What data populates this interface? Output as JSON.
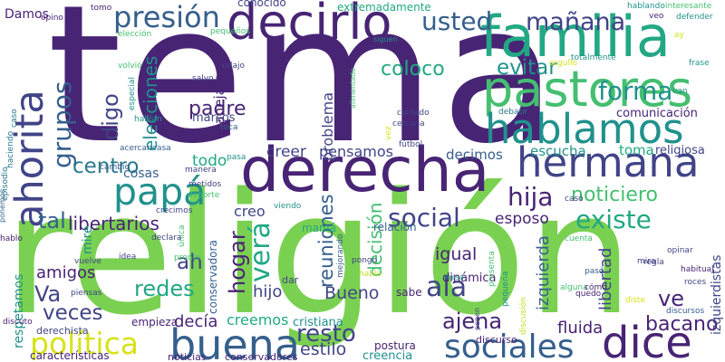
{
  "palette": {
    "purple": "#482475",
    "violet": "#414487",
    "blue": "#355f8d",
    "steel": "#2a788e",
    "teal": "#21918c",
    "sea": "#22a884",
    "green": "#44bf70",
    "lime": "#7ad151",
    "yellow": "#bddf26",
    "gold": "#d8e219"
  },
  "words": [
    {
      "text": "tema",
      "color": "purple"
    },
    {
      "text": "religión",
      "color": "lime"
    },
    {
      "text": "derecha",
      "color": "purple"
    },
    {
      "text": "familia",
      "color": "sea"
    },
    {
      "text": "pastores",
      "color": "green"
    },
    {
      "text": "decirlo",
      "color": "purple"
    },
    {
      "text": "hermana",
      "color": "violet"
    },
    {
      "text": "hablamos",
      "color": "teal"
    },
    {
      "text": "ahorita",
      "color": "violet"
    },
    {
      "text": "buena",
      "color": "blue"
    },
    {
      "text": "dice",
      "color": "purple"
    },
    {
      "text": "papá",
      "color": "teal"
    },
    {
      "text": "sociales",
      "color": "blue"
    },
    {
      "text": "política",
      "color": "gold"
    },
    {
      "text": "presión",
      "color": "blue"
    },
    {
      "text": "usted",
      "color": "blue"
    },
    {
      "text": "mañana",
      "color": "violet"
    },
    {
      "text": "forma",
      "color": "teal"
    },
    {
      "text": "social",
      "color": "violet"
    },
    {
      "text": "existe",
      "color": "sea"
    },
    {
      "text": "hija",
      "color": "purple"
    },
    {
      "text": "noticiero",
      "color": "green"
    },
    {
      "text": "verá",
      "color": "sea"
    },
    {
      "text": "tal",
      "color": "blue"
    },
    {
      "text": "grupos",
      "color": "blue"
    },
    {
      "text": "ala",
      "color": "violet"
    },
    {
      "text": "centro",
      "color": "steel"
    },
    {
      "text": "libertarios",
      "color": "purple"
    },
    {
      "text": "evitar",
      "color": "teal"
    },
    {
      "text": "coloco",
      "color": "sea"
    },
    {
      "text": "digo",
      "color": "violet"
    },
    {
      "text": "elecciones",
      "color": "teal"
    },
    {
      "text": "padre",
      "color": "purple"
    },
    {
      "text": "hogar",
      "color": "purple"
    },
    {
      "text": "reuniones",
      "color": "blue"
    },
    {
      "text": "resto",
      "color": "violet"
    },
    {
      "text": "ajena",
      "color": "purple"
    },
    {
      "text": "veces",
      "color": "violet"
    },
    {
      "text": "redes",
      "color": "sea"
    },
    {
      "text": "ah",
      "color": "violet"
    },
    {
      "text": "Va",
      "color": "violet"
    },
    {
      "text": "amigos",
      "color": "purple"
    },
    {
      "text": "bacano",
      "color": "purple"
    },
    {
      "text": "ve",
      "color": "purple"
    },
    {
      "text": "esposo",
      "color": "purple"
    },
    {
      "text": "igual",
      "color": "purple"
    },
    {
      "text": "hijo",
      "color": "violet"
    },
    {
      "text": "Bueno",
      "color": "violet"
    },
    {
      "text": "decía",
      "color": "purple"
    },
    {
      "text": "creemos",
      "color": "sea"
    },
    {
      "text": "estilo",
      "color": "violet"
    },
    {
      "text": "fluida",
      "color": "purple"
    },
    {
      "text": "libertad",
      "color": "violet"
    },
    {
      "text": "izquierda",
      "color": "blue"
    },
    {
      "text": "decisión",
      "color": "green"
    },
    {
      "text": "manejamos",
      "color": "purple"
    },
    {
      "text": "problema",
      "color": "violet"
    },
    {
      "text": "creer",
      "color": "violet"
    },
    {
      "text": "pensamos",
      "color": "violet"
    },
    {
      "text": "decimos",
      "color": "blue"
    },
    {
      "text": "escucha",
      "color": "teal"
    },
    {
      "text": "toma",
      "color": "sea"
    },
    {
      "text": "todo",
      "color": "sea"
    },
    {
      "text": "creo",
      "color": "violet"
    },
    {
      "text": "mire",
      "color": "teal"
    },
    {
      "text": "cosas",
      "color": "blue"
    },
    {
      "text": "Damos",
      "color": "purple"
    },
    {
      "text": "respetamos",
      "color": "teal"
    },
    {
      "text": "izquierdistas",
      "color": "violet"
    },
    {
      "text": "comunicación",
      "color": "purple"
    },
    {
      "text": "religiosa",
      "color": "violet"
    },
    {
      "text": "marcos",
      "color": "violet"
    },
    {
      "text": "conocido",
      "color": "violet"
    },
    {
      "text": "extremadamente",
      "color": "sea"
    },
    {
      "text": "cristiana",
      "color": "teal"
    },
    {
      "text": "creencia",
      "color": "teal"
    },
    {
      "text": "empieza",
      "color": "purple"
    },
    {
      "text": "conservadora",
      "color": "blue"
    },
    {
      "text": "dinámica",
      "color": "purple"
    },
    {
      "text": "relación",
      "color": "blue"
    },
    {
      "text": "mamá",
      "color": "sea"
    },
    {
      "text": "dar",
      "color": "violet"
    },
    {
      "text": "sabe",
      "color": "purple"
    },
    {
      "text": "postura",
      "color": "purple"
    },
    {
      "text": "características",
      "color": "purple"
    },
    {
      "text": "derechista",
      "color": "violet"
    },
    {
      "text": "noticias",
      "color": "purple"
    },
    {
      "text": "conservadores",
      "color": "purple"
    },
    {
      "text": "discurso",
      "color": "purple"
    },
    {
      "text": "opino",
      "color": "purple"
    },
    {
      "text": "tomo",
      "color": "purple"
    },
    {
      "text": "elección",
      "color": "green"
    },
    {
      "text": "pequeños",
      "color": "green"
    },
    {
      "text": "hablando",
      "color": "teal"
    },
    {
      "text": "interesante",
      "color": "green"
    },
    {
      "text": "defender",
      "color": "teal"
    },
    {
      "text": "veo",
      "color": "purple"
    },
    {
      "text": "siguen",
      "color": "teal"
    },
    {
      "text": "totalmente",
      "color": "teal"
    },
    {
      "text": "ay",
      "color": "gold"
    },
    {
      "text": "frase",
      "color": "teal"
    },
    {
      "text": "van",
      "color": "teal"
    },
    {
      "text": "volvió",
      "color": "green"
    },
    {
      "text": "relajo",
      "color": "violet"
    },
    {
      "text": "salvo",
      "color": "violet"
    },
    {
      "text": "alimentado",
      "color": "green"
    },
    {
      "text": "cuidado",
      "color": "violet"
    },
    {
      "text": "cercana",
      "color": "violet"
    },
    {
      "text": "vez",
      "color": "gold"
    },
    {
      "text": "debatir",
      "color": "steel"
    },
    {
      "text": "fútbol",
      "color": "violet"
    },
    {
      "text": "toca",
      "color": "blue"
    },
    {
      "text": "casa",
      "color": "blue"
    },
    {
      "text": "acercan",
      "color": "blue"
    },
    {
      "text": "cambio",
      "color": "blue"
    },
    {
      "text": "especial",
      "color": "teal"
    },
    {
      "text": "hablan",
      "color": "teal"
    },
    {
      "text": "crecimos",
      "color": "violet"
    },
    {
      "text": "caso",
      "color": "steel"
    },
    {
      "text": "haciendo",
      "color": "steel"
    },
    {
      "text": "pasa",
      "color": "teal"
    },
    {
      "text": "manera",
      "color": "violet"
    },
    {
      "text": "metidos",
      "color": "violet"
    },
    {
      "text": "deporte",
      "color": "green"
    },
    {
      "text": "viendo",
      "color": "teal"
    },
    {
      "text": "ponemos",
      "color": "blue"
    },
    {
      "text": "hablo",
      "color": "purple"
    },
    {
      "text": "casó",
      "color": "violet"
    },
    {
      "text": "cuenta",
      "color": "green"
    },
    {
      "text": "única",
      "color": "green"
    },
    {
      "text": "declara",
      "color": "violet"
    },
    {
      "text": "pronto",
      "color": "green"
    },
    {
      "text": "idea",
      "color": "violet"
    },
    {
      "text": "vuelve",
      "color": "violet"
    },
    {
      "text": "piensas",
      "color": "violet"
    },
    {
      "text": "mejorando",
      "color": "blue"
    },
    {
      "text": "pongo",
      "color": "violet"
    },
    {
      "text": "habla",
      "color": "yellow"
    },
    {
      "text": "mesa",
      "color": "teal"
    },
    {
      "text": "presenta",
      "color": "green"
    },
    {
      "text": "alguna",
      "color": "green"
    },
    {
      "text": "pequeña",
      "color": "teal"
    },
    {
      "text": "discusión",
      "color": "yellow"
    },
    {
      "text": "ponen",
      "color": "violet"
    },
    {
      "text": "mira",
      "color": "violet"
    },
    {
      "text": "regla",
      "color": "violet"
    },
    {
      "text": "pasó",
      "color": "blue"
    },
    {
      "text": "quedo",
      "color": "purple"
    },
    {
      "text": "cómo",
      "color": "purple"
    },
    {
      "text": "opinar",
      "color": "violet"
    },
    {
      "text": "habitual",
      "color": "purple"
    },
    {
      "text": "roces",
      "color": "violet"
    },
    {
      "text": "diste",
      "color": "gold"
    },
    {
      "text": "discursos",
      "color": "blue"
    },
    {
      "text": "discuto",
      "color": "purple"
    },
    {
      "text": "episodio",
      "color": "steel"
    },
    {
      "text": "orgullo",
      "color": "gold"
    }
  ]
}
